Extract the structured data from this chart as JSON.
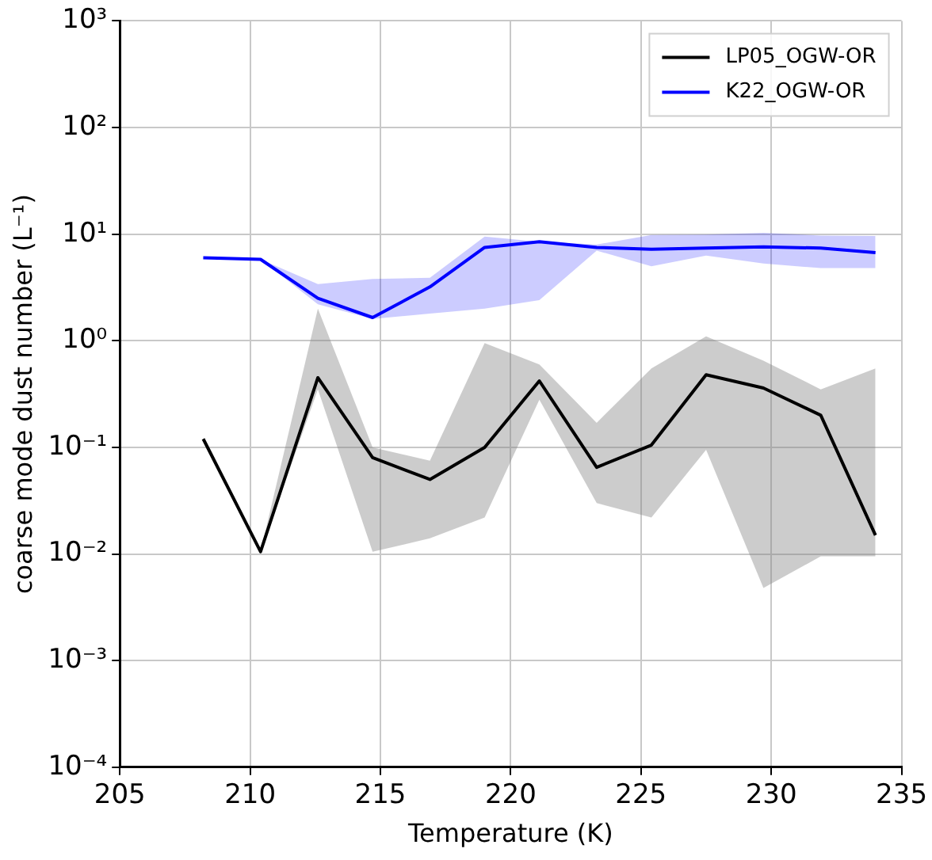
{
  "chart_data": {
    "type": "line",
    "xlabel": "Temperature (K)",
    "ylabel": "coarse mode dust number (L⁻¹)",
    "x": [
      208.2,
      210.4,
      212.6,
      214.7,
      216.9,
      219.0,
      221.1,
      223.3,
      225.4,
      227.5,
      229.7,
      231.9,
      234.0
    ],
    "series": [
      {
        "name": "LP05_OGW-OR",
        "color": "#000000",
        "values": [
          0.12,
          0.0105,
          0.45,
          0.08,
          0.05,
          0.1,
          0.42,
          0.065,
          0.105,
          0.48,
          0.36,
          0.2,
          0.015
        ],
        "lower": [
          null,
          0.0105,
          0.35,
          0.0105,
          0.014,
          0.022,
          0.28,
          0.03,
          0.022,
          0.095,
          0.0048,
          0.0095,
          0.0095
        ],
        "upper": [
          null,
          0.0105,
          2.0,
          0.1,
          0.075,
          0.95,
          0.6,
          0.17,
          0.55,
          1.1,
          0.65,
          0.35,
          0.55
        ]
      },
      {
        "name": "K22_OGW-OR",
        "color": "#0000ff",
        "values": [
          6.0,
          5.8,
          2.5,
          1.65,
          3.2,
          7.5,
          8.5,
          7.5,
          7.2,
          7.4,
          7.6,
          7.4,
          6.7
        ],
        "lower": [
          null,
          5.8,
          2.2,
          1.6,
          1.8,
          2.0,
          2.4,
          7.0,
          5.0,
          6.3,
          5.3,
          4.8,
          4.8
        ],
        "upper": [
          null,
          5.8,
          3.4,
          3.8,
          3.9,
          9.5,
          8.5,
          8.0,
          9.8,
          9.9,
          10.3,
          9.7,
          9.6
        ]
      }
    ],
    "xlim": [
      205,
      235
    ],
    "xticks": [
      205,
      210,
      215,
      220,
      225,
      230,
      235
    ],
    "ylim": [
      0.0001,
      1000
    ],
    "yticks": [
      {
        "value": 0.0001,
        "label": "10⁻⁴"
      },
      {
        "value": 0.001,
        "label": "10⁻³"
      },
      {
        "value": 0.01,
        "label": "10⁻²"
      },
      {
        "value": 0.1,
        "label": "10⁻¹"
      },
      {
        "value": 1,
        "label": "10⁰"
      },
      {
        "value": 10,
        "label": "10¹"
      },
      {
        "value": 100,
        "label": "10²"
      },
      {
        "value": 1000,
        "label": "10³"
      }
    ],
    "log": "y",
    "grid": true,
    "legend": "top right",
    "marker": "none",
    "line_style": "solid"
  }
}
